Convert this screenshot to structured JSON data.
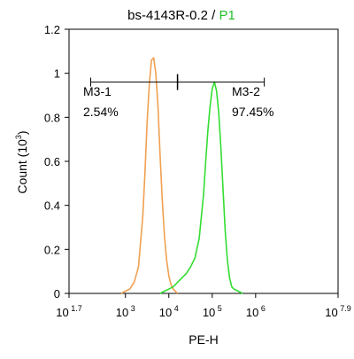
{
  "chart_data": {
    "type": "line",
    "title": "bs-4143R-0.2 / ",
    "title_highlight": "P1",
    "xlabel": "PE-H",
    "ylabel_base": "Count",
    "ylabel_exp": "3",
    "x_scale": "log10",
    "xlim": [
      1.7,
      7.9
    ],
    "ylim": [
      0,
      1.2
    ],
    "x_ticks": [
      {
        "base": "10",
        "exp": "1.7",
        "value": 1.7
      },
      {
        "base": "10",
        "exp": "3",
        "value": 3
      },
      {
        "base": "10",
        "exp": "4",
        "value": 4
      },
      {
        "base": "10",
        "exp": "5",
        "value": 5
      },
      {
        "base": "10",
        "exp": "6",
        "value": 6
      },
      {
        "base": "10",
        "exp": "7.9",
        "value": 7.9
      }
    ],
    "y_ticks": [
      "0",
      "0.2",
      "0.4",
      "0.6",
      "0.8",
      "1",
      "1.2"
    ],
    "series": [
      {
        "color": "#f0a050",
        "x_log10": [
          2.9,
          3.0,
          3.1,
          3.2,
          3.3,
          3.4,
          3.45,
          3.5,
          3.55,
          3.6,
          3.65,
          3.7,
          3.75,
          3.8,
          3.85,
          3.9,
          3.95,
          4.0,
          4.05,
          4.1,
          4.15,
          4.2
        ],
        "y": [
          0.0,
          0.01,
          0.02,
          0.05,
          0.12,
          0.35,
          0.55,
          0.78,
          0.95,
          1.06,
          1.07,
          1.0,
          0.85,
          0.62,
          0.42,
          0.26,
          0.15,
          0.08,
          0.04,
          0.02,
          0.01,
          0.0
        ]
      },
      {
        "color": "#33dd33",
        "x_log10": [
          3.8,
          3.9,
          4.0,
          4.1,
          4.2,
          4.3,
          4.4,
          4.5,
          4.6,
          4.7,
          4.8,
          4.85,
          4.9,
          4.95,
          5.0,
          5.05,
          5.1,
          5.15,
          5.2,
          5.25,
          5.3,
          5.35,
          5.4,
          5.45,
          5.5,
          5.6,
          5.7
        ],
        "y": [
          0.0,
          0.01,
          0.02,
          0.03,
          0.05,
          0.07,
          0.09,
          0.12,
          0.16,
          0.25,
          0.45,
          0.6,
          0.74,
          0.85,
          0.93,
          0.96,
          0.92,
          0.82,
          0.66,
          0.47,
          0.28,
          0.15,
          0.07,
          0.03,
          0.02,
          0.01,
          0.0
        ]
      }
    ],
    "gates": [
      {
        "name": "M3-1",
        "percent": "2.54%",
        "x_start": 2.2,
        "x_end": 4.2,
        "y": 0.96
      },
      {
        "name": "M3-2",
        "percent": "97.45%",
        "x_start": 4.2,
        "x_end": 6.2,
        "y": 0.96
      }
    ],
    "divider": {
      "x": 4.2,
      "y": 0.96
    }
  }
}
